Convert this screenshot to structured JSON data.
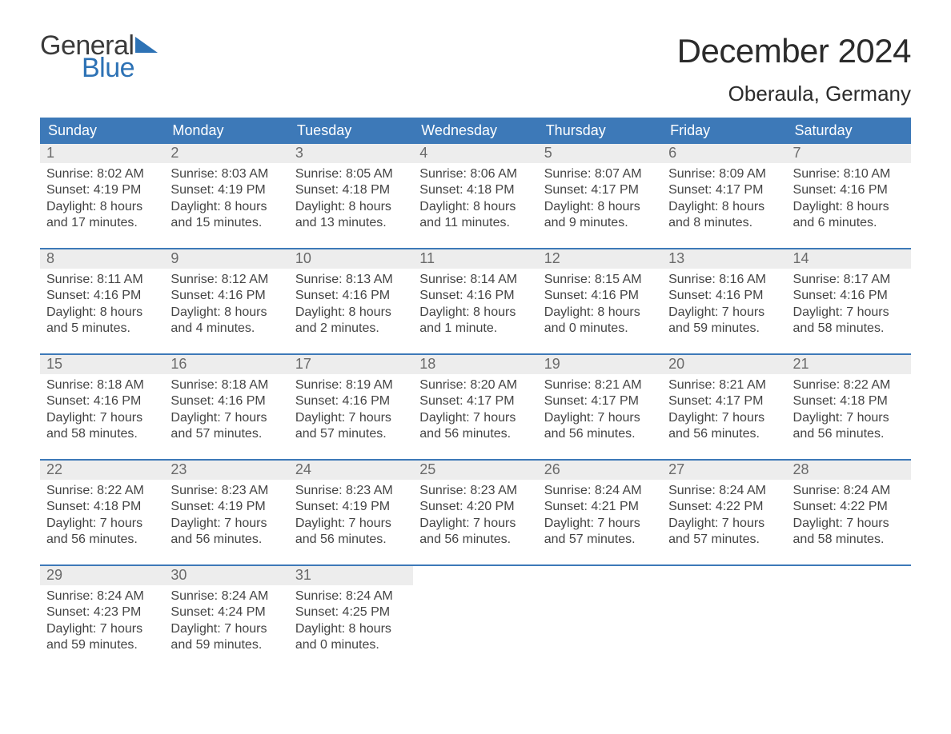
{
  "brand": {
    "general": "General",
    "blue": "Blue",
    "tri_color": "#2d72b5"
  },
  "title": "December 2024",
  "location": "Oberaula, Germany",
  "colors": {
    "header_bg": "#3d79b8",
    "header_text": "#ffffff",
    "daynum_bg": "#ededed",
    "daynum_text": "#6a6a6a",
    "week_border": "#3d79b8",
    "body_text": "#444444",
    "page_bg": "#ffffff"
  },
  "day_headers": [
    "Sunday",
    "Monday",
    "Tuesday",
    "Wednesday",
    "Thursday",
    "Friday",
    "Saturday"
  ],
  "weeks": [
    [
      {
        "n": "1",
        "sunrise": "Sunrise: 8:02 AM",
        "sunset": "Sunset: 4:19 PM",
        "d1": "Daylight: 8 hours",
        "d2": "and 17 minutes."
      },
      {
        "n": "2",
        "sunrise": "Sunrise: 8:03 AM",
        "sunset": "Sunset: 4:19 PM",
        "d1": "Daylight: 8 hours",
        "d2": "and 15 minutes."
      },
      {
        "n": "3",
        "sunrise": "Sunrise: 8:05 AM",
        "sunset": "Sunset: 4:18 PM",
        "d1": "Daylight: 8 hours",
        "d2": "and 13 minutes."
      },
      {
        "n": "4",
        "sunrise": "Sunrise: 8:06 AM",
        "sunset": "Sunset: 4:18 PM",
        "d1": "Daylight: 8 hours",
        "d2": "and 11 minutes."
      },
      {
        "n": "5",
        "sunrise": "Sunrise: 8:07 AM",
        "sunset": "Sunset: 4:17 PM",
        "d1": "Daylight: 8 hours",
        "d2": "and 9 minutes."
      },
      {
        "n": "6",
        "sunrise": "Sunrise: 8:09 AM",
        "sunset": "Sunset: 4:17 PM",
        "d1": "Daylight: 8 hours",
        "d2": "and 8 minutes."
      },
      {
        "n": "7",
        "sunrise": "Sunrise: 8:10 AM",
        "sunset": "Sunset: 4:16 PM",
        "d1": "Daylight: 8 hours",
        "d2": "and 6 minutes."
      }
    ],
    [
      {
        "n": "8",
        "sunrise": "Sunrise: 8:11 AM",
        "sunset": "Sunset: 4:16 PM",
        "d1": "Daylight: 8 hours",
        "d2": "and 5 minutes."
      },
      {
        "n": "9",
        "sunrise": "Sunrise: 8:12 AM",
        "sunset": "Sunset: 4:16 PM",
        "d1": "Daylight: 8 hours",
        "d2": "and 4 minutes."
      },
      {
        "n": "10",
        "sunrise": "Sunrise: 8:13 AM",
        "sunset": "Sunset: 4:16 PM",
        "d1": "Daylight: 8 hours",
        "d2": "and 2 minutes."
      },
      {
        "n": "11",
        "sunrise": "Sunrise: 8:14 AM",
        "sunset": "Sunset: 4:16 PM",
        "d1": "Daylight: 8 hours",
        "d2": "and 1 minute."
      },
      {
        "n": "12",
        "sunrise": "Sunrise: 8:15 AM",
        "sunset": "Sunset: 4:16 PM",
        "d1": "Daylight: 8 hours",
        "d2": "and 0 minutes."
      },
      {
        "n": "13",
        "sunrise": "Sunrise: 8:16 AM",
        "sunset": "Sunset: 4:16 PM",
        "d1": "Daylight: 7 hours",
        "d2": "and 59 minutes."
      },
      {
        "n": "14",
        "sunrise": "Sunrise: 8:17 AM",
        "sunset": "Sunset: 4:16 PM",
        "d1": "Daylight: 7 hours",
        "d2": "and 58 minutes."
      }
    ],
    [
      {
        "n": "15",
        "sunrise": "Sunrise: 8:18 AM",
        "sunset": "Sunset: 4:16 PM",
        "d1": "Daylight: 7 hours",
        "d2": "and 58 minutes."
      },
      {
        "n": "16",
        "sunrise": "Sunrise: 8:18 AM",
        "sunset": "Sunset: 4:16 PM",
        "d1": "Daylight: 7 hours",
        "d2": "and 57 minutes."
      },
      {
        "n": "17",
        "sunrise": "Sunrise: 8:19 AM",
        "sunset": "Sunset: 4:16 PM",
        "d1": "Daylight: 7 hours",
        "d2": "and 57 minutes."
      },
      {
        "n": "18",
        "sunrise": "Sunrise: 8:20 AM",
        "sunset": "Sunset: 4:17 PM",
        "d1": "Daylight: 7 hours",
        "d2": "and 56 minutes."
      },
      {
        "n": "19",
        "sunrise": "Sunrise: 8:21 AM",
        "sunset": "Sunset: 4:17 PM",
        "d1": "Daylight: 7 hours",
        "d2": "and 56 minutes."
      },
      {
        "n": "20",
        "sunrise": "Sunrise: 8:21 AM",
        "sunset": "Sunset: 4:17 PM",
        "d1": "Daylight: 7 hours",
        "d2": "and 56 minutes."
      },
      {
        "n": "21",
        "sunrise": "Sunrise: 8:22 AM",
        "sunset": "Sunset: 4:18 PM",
        "d1": "Daylight: 7 hours",
        "d2": "and 56 minutes."
      }
    ],
    [
      {
        "n": "22",
        "sunrise": "Sunrise: 8:22 AM",
        "sunset": "Sunset: 4:18 PM",
        "d1": "Daylight: 7 hours",
        "d2": "and 56 minutes."
      },
      {
        "n": "23",
        "sunrise": "Sunrise: 8:23 AM",
        "sunset": "Sunset: 4:19 PM",
        "d1": "Daylight: 7 hours",
        "d2": "and 56 minutes."
      },
      {
        "n": "24",
        "sunrise": "Sunrise: 8:23 AM",
        "sunset": "Sunset: 4:19 PM",
        "d1": "Daylight: 7 hours",
        "d2": "and 56 minutes."
      },
      {
        "n": "25",
        "sunrise": "Sunrise: 8:23 AM",
        "sunset": "Sunset: 4:20 PM",
        "d1": "Daylight: 7 hours",
        "d2": "and 56 minutes."
      },
      {
        "n": "26",
        "sunrise": "Sunrise: 8:24 AM",
        "sunset": "Sunset: 4:21 PM",
        "d1": "Daylight: 7 hours",
        "d2": "and 57 minutes."
      },
      {
        "n": "27",
        "sunrise": "Sunrise: 8:24 AM",
        "sunset": "Sunset: 4:22 PM",
        "d1": "Daylight: 7 hours",
        "d2": "and 57 minutes."
      },
      {
        "n": "28",
        "sunrise": "Sunrise: 8:24 AM",
        "sunset": "Sunset: 4:22 PM",
        "d1": "Daylight: 7 hours",
        "d2": "and 58 minutes."
      }
    ],
    [
      {
        "n": "29",
        "sunrise": "Sunrise: 8:24 AM",
        "sunset": "Sunset: 4:23 PM",
        "d1": "Daylight: 7 hours",
        "d2": "and 59 minutes."
      },
      {
        "n": "30",
        "sunrise": "Sunrise: 8:24 AM",
        "sunset": "Sunset: 4:24 PM",
        "d1": "Daylight: 7 hours",
        "d2": "and 59 minutes."
      },
      {
        "n": "31",
        "sunrise": "Sunrise: 8:24 AM",
        "sunset": "Sunset: 4:25 PM",
        "d1": "Daylight: 8 hours",
        "d2": "and 0 minutes."
      },
      null,
      null,
      null,
      null
    ]
  ]
}
